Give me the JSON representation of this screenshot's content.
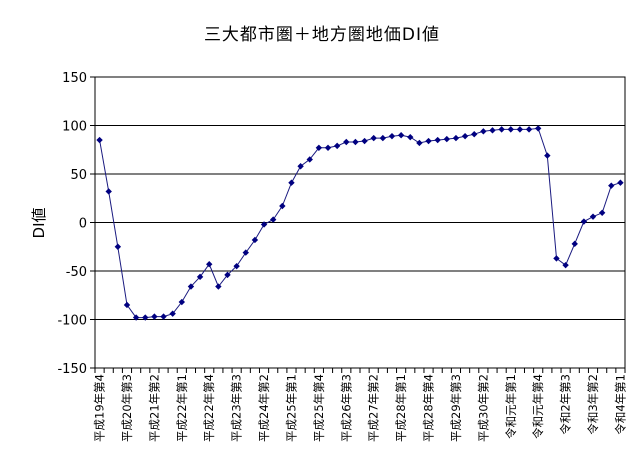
{
  "chart_data": {
    "type": "line",
    "title": "三大都市圏＋地方圏地価DI値",
    "xlabel": "",
    "ylabel": "DI値",
    "ylim": [
      -150,
      150
    ],
    "yticks": [
      150,
      100,
      50,
      0,
      -50,
      -100,
      -150
    ],
    "grid": true,
    "x_tick_labels": [
      "平成19年第4",
      "平成20年第3",
      "平成21年第2",
      "平成22年第1",
      "平成22年第4",
      "平成23年第3",
      "平成24年第2",
      "平成25年第1",
      "平成25年第4",
      "平成26年第3",
      "平成27年第2",
      "平成28年第1",
      "平成28年第4",
      "平成29年第3",
      "平成30年第2",
      "令和元年第1",
      "令和元年第4",
      "令和2年第3",
      "令和3年第2",
      "令和4年第1"
    ],
    "series": [
      {
        "values": [
          85,
          32,
          -25,
          -85,
          -98,
          -98,
          -97,
          -97,
          -94,
          -82,
          -66,
          -56,
          -43,
          -66,
          -54,
          -45,
          -31,
          -18,
          -2,
          3,
          17,
          41,
          58,
          65,
          77,
          77,
          79,
          83,
          83,
          84,
          87,
          87,
          89,
          90,
          88,
          82,
          84,
          85,
          86,
          87,
          89,
          91,
          94,
          95,
          96,
          96,
          96,
          96,
          97,
          69,
          -37,
          -44,
          -22,
          1,
          6,
          10,
          38,
          41
        ]
      }
    ]
  }
}
